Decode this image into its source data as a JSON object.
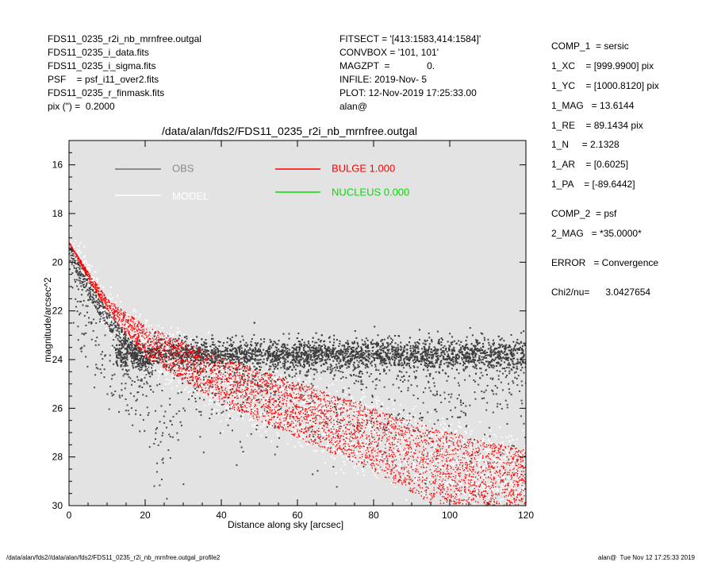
{
  "header_left": [
    "FDS11_0235_r2i_nb_mrnfree.outgal",
    "FDS11_0235_i_data.fits",
    "FDS11_0235_i_sigma.fits",
    "PSF    = psf_i11_over2.fits",
    "FDS11_0235_r_finmask.fits",
    "pix (\") =  0.2000"
  ],
  "header_mid": [
    "FITSECT = '[413:1583,414:1584]'",
    "CONVBOX = '101, 101'",
    "MAGZPT  =              0.",
    "INFILE: 2019-Nov- 5",
    "PLOT: 12-Nov-2019 17:25:33.00",
    "alan@"
  ],
  "right_panel": [
    "COMP_1  = sersic",
    "1_XC    = [999.9900] pix",
    "1_YC    = [1000.8120] pix",
    "1_MAG   = 13.6144",
    "1_RE    = 89.1434 pix",
    "1_N     = 2.1328",
    "1_AR    = [0.6025]",
    "1_PA    = [-89.6442]",
    "COMP_2  = psf",
    "2_MAG   = *35.0000*",
    "ERROR   = Convergence",
    "Chi2/nu=      3.0427654"
  ],
  "footer": {
    "left": "/data/alan/fds2//data/alan/fds2/FDS11_0235_r2i_nb_mrnfree.outgal_profile2",
    "right": "alan@  Tue Nov 12 17:25:33 2019"
  },
  "chart_data": {
    "type": "scatter",
    "title": "/data/alan/fds2/FDS11_0235_r2i_nb_mrnfree.outgal",
    "xlabel": "Distance along sky [arcsec]",
    "ylabel": "magnitude/arcsec^2",
    "xlim": [
      0,
      120
    ],
    "ylim": [
      30,
      15
    ],
    "y_inverted": true,
    "xticks": [
      0,
      20,
      40,
      60,
      80,
      100,
      120
    ],
    "yticks": [
      16,
      18,
      20,
      22,
      24,
      26,
      28,
      30
    ],
    "background": "#e3e3e3",
    "legend": [
      {
        "label": "OBS",
        "color": "#808080",
        "line_color": "#707070"
      },
      {
        "label": "MODEL",
        "color": "#ffffff",
        "line_color": "#ffffff"
      },
      {
        "label": "BULGE  1.000",
        "color": "#ff0000",
        "line_color": "#ff0000"
      },
      {
        "label": "NUCLEUS  0.000",
        "color": "#00e000",
        "line_color": "#00e000"
      }
    ],
    "series": [
      {
        "name": "OBS",
        "color": "#505050",
        "description_points": [
          [
            0,
            19.2
          ],
          [
            5,
            20.6
          ],
          [
            10,
            21.9
          ],
          [
            15,
            22.9
          ],
          [
            20,
            23.5
          ],
          [
            30,
            23.7
          ],
          [
            60,
            23.7
          ],
          [
            90,
            23.8
          ],
          [
            120,
            23.9
          ]
        ],
        "sky_plateau_mag": 23.8,
        "scatter_halo_range": [
          22.8,
          30
        ]
      },
      {
        "name": "MODEL",
        "color": "#ffffff",
        "upper_envelope": [
          [
            0,
            19.2
          ],
          [
            10,
            21.5
          ],
          [
            20,
            22.6
          ],
          [
            40,
            23.8
          ],
          [
            60,
            24.8
          ],
          [
            80,
            25.8
          ],
          [
            100,
            26.8
          ],
          [
            120,
            27.6
          ]
        ],
        "lower_envelope": [
          [
            0,
            19.2
          ],
          [
            10,
            22.5
          ],
          [
            20,
            24.2
          ],
          [
            40,
            26.0
          ],
          [
            60,
            27.3
          ],
          [
            80,
            28.5
          ],
          [
            95,
            29.5
          ],
          [
            120,
            30.0
          ]
        ]
      },
      {
        "name": "BULGE",
        "color": "#ff0000",
        "upper_envelope": [
          [
            0,
            19.2
          ],
          [
            5,
            20.4
          ],
          [
            10,
            21.5
          ],
          [
            20,
            22.6
          ],
          [
            40,
            23.9
          ],
          [
            60,
            24.9
          ],
          [
            80,
            26.0
          ],
          [
            100,
            27.0
          ],
          [
            120,
            27.7
          ]
        ],
        "lower_envelope": [
          [
            0,
            19.2
          ],
          [
            5,
            20.7
          ],
          [
            10,
            22.0
          ],
          [
            20,
            23.9
          ],
          [
            40,
            25.8
          ],
          [
            60,
            27.2
          ],
          [
            80,
            28.6
          ],
          [
            95,
            29.9
          ],
          [
            120,
            30.0
          ]
        ]
      }
    ]
  }
}
